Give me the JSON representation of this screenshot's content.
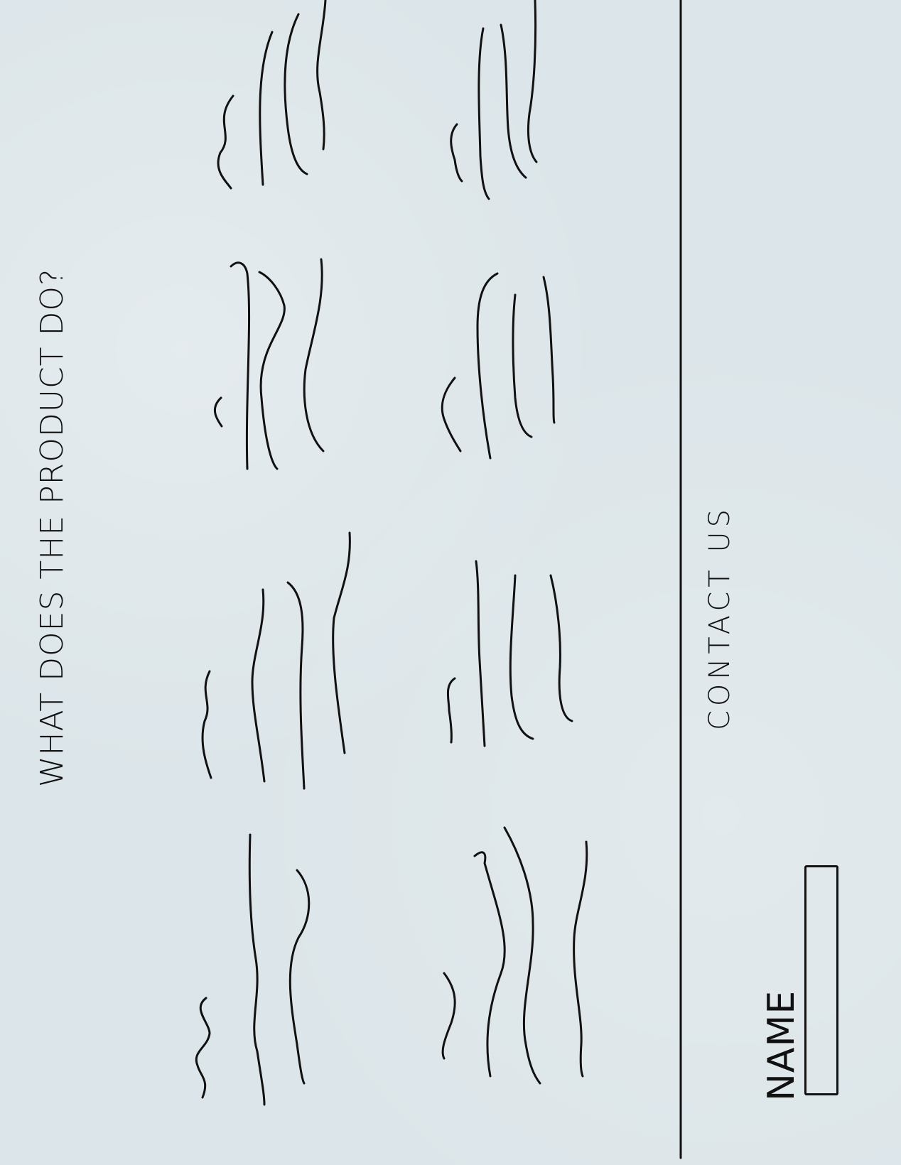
{
  "heading": "WHAT DOES THE PRODUCT DO?",
  "contact": {
    "title": "CONTACT US",
    "name_label": "NAME",
    "name_value": ""
  },
  "colors": {
    "paper": "#dce5e9",
    "ink": "#111111"
  },
  "feature_blocks": [
    {
      "name": "feature-1"
    },
    {
      "name": "feature-2"
    },
    {
      "name": "feature-3"
    },
    {
      "name": "feature-4"
    },
    {
      "name": "feature-5"
    },
    {
      "name": "feature-6"
    },
    {
      "name": "feature-7"
    },
    {
      "name": "feature-8"
    }
  ]
}
